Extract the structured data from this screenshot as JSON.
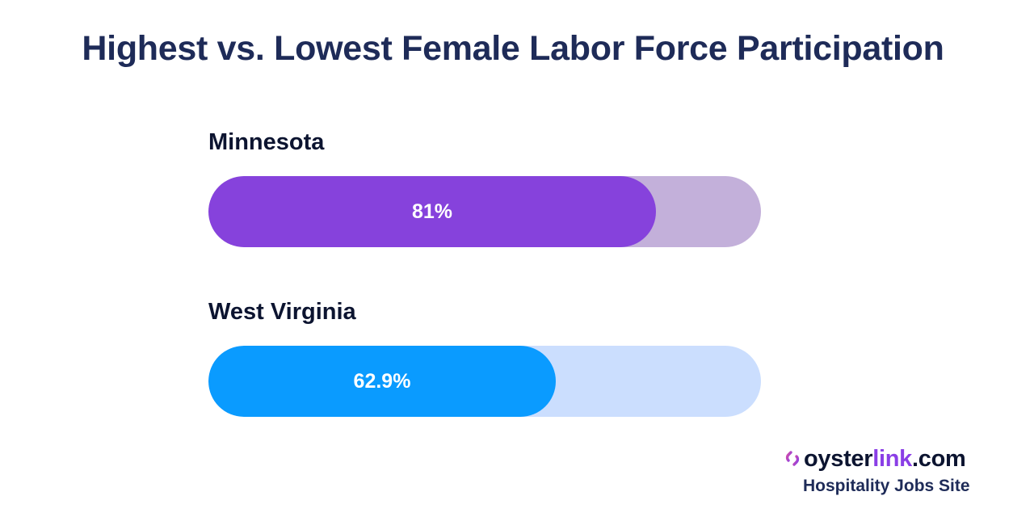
{
  "title": "Highest vs. Lowest Female Labor Force Participation",
  "chart_data": {
    "type": "bar",
    "orientation": "horizontal",
    "title": "Highest vs. Lowest Female Labor Force Participation",
    "xlabel": "",
    "ylabel": "",
    "xlim": [
      0,
      100
    ],
    "grid": false,
    "categories": [
      "Minnesota",
      "West Virginia"
    ],
    "values": [
      81,
      62.9
    ],
    "data_labels": [
      "81%",
      "62.9%"
    ],
    "colors": {
      "bars": [
        "#8642dc",
        "#0a9bff"
      ],
      "tracks": [
        "#c3b0da",
        "#cbdefe"
      ]
    }
  },
  "logo": {
    "part1": "oyster",
    "part2": "link",
    "part3": ".com",
    "tagline": "Hospitality Jobs Site",
    "icon": "oyster-link-icon"
  },
  "colors": {
    "title": "#1e2b58",
    "label": "#0c1430",
    "brand_purple": "#8a3ee6",
    "brand_pink": "#d64ea6"
  }
}
